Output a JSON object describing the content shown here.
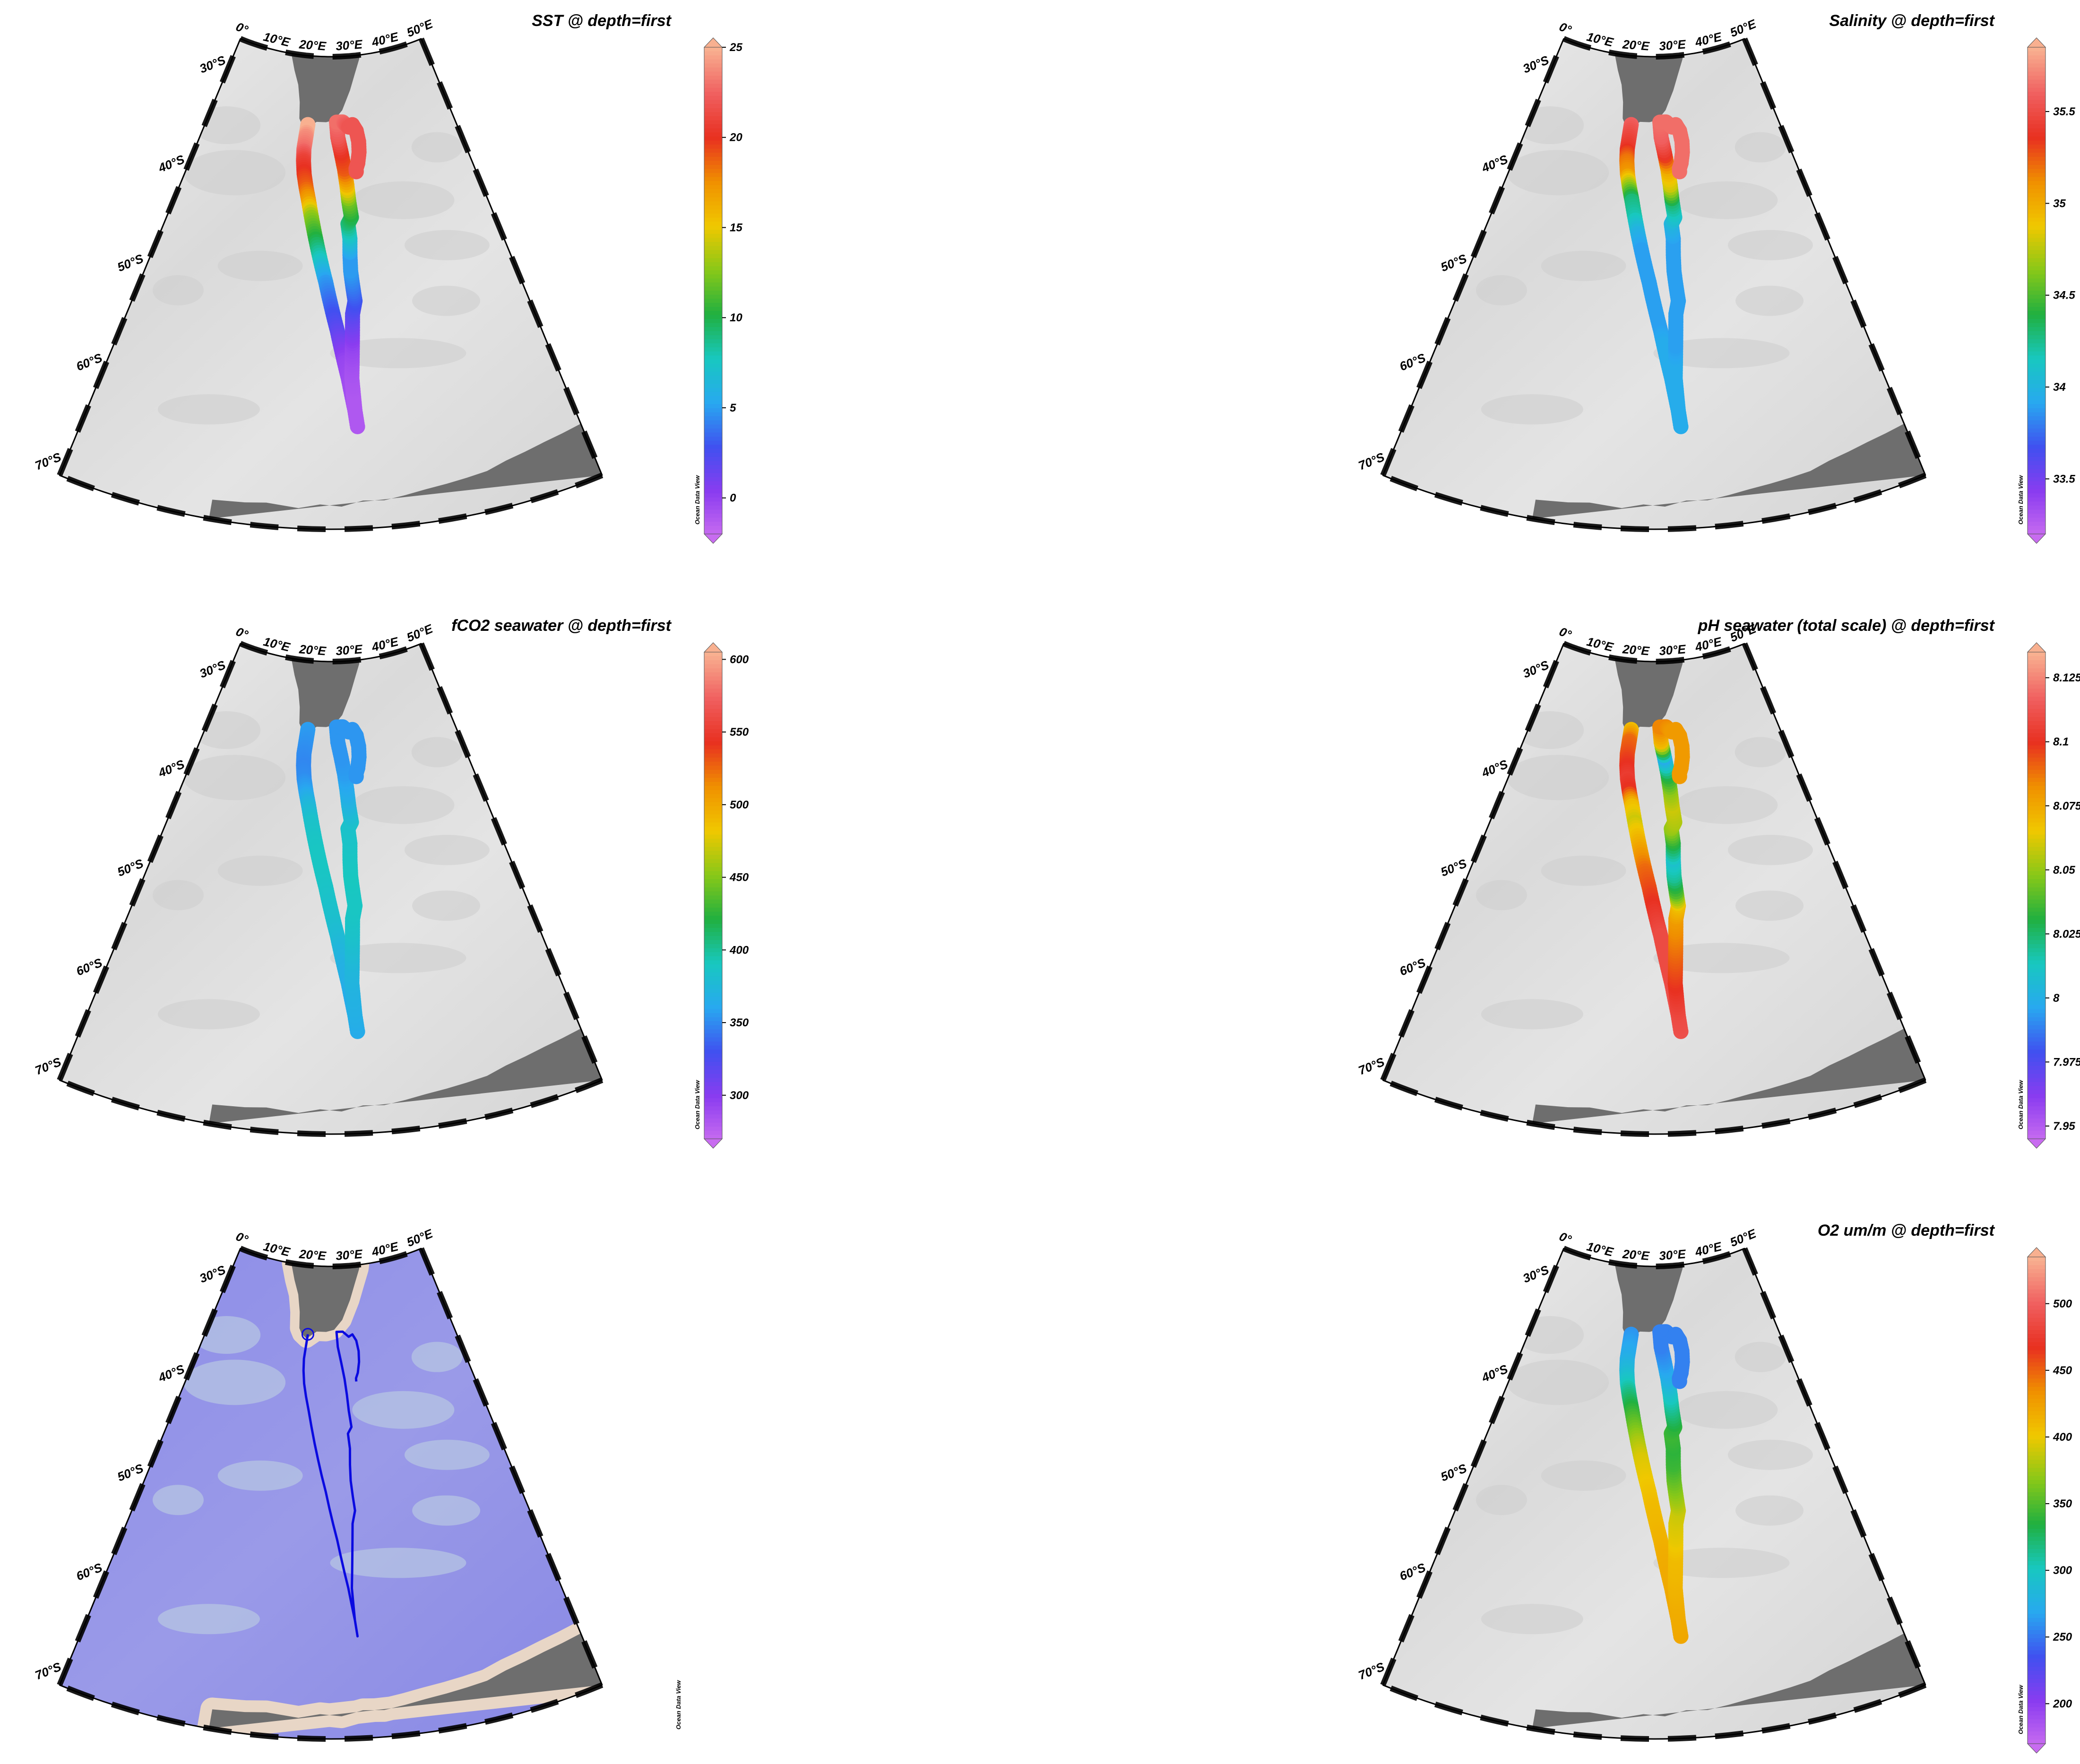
{
  "map": {
    "lon_range": [
      0,
      50
    ],
    "lat_range": [
      -72,
      -28
    ],
    "lon_ticks": [
      0,
      10,
      20,
      30,
      40,
      50
    ],
    "lat_ticks": [
      -30,
      -40,
      -50,
      -60,
      -70
    ],
    "lon_tick_labels": [
      "0°",
      "10°E",
      "20°E",
      "30°E",
      "40°E",
      "50°E"
    ],
    "lat_tick_labels": [
      "30°S",
      "40°S",
      "50°S",
      "60°S",
      "70°S"
    ],
    "credit": "Ocean Data View",
    "colors": {
      "land": "#6e6e6e",
      "ocean_light": "#ebebeb",
      "ocean_dark": "#cfcfcf",
      "track_line": "#0a0ae0",
      "bathy_ocean": "#8e8ee6",
      "bathy_shelf": "#b8c8e2",
      "bathy_coast": "#e8d6c6"
    },
    "palette": [
      "#c86cf0",
      "#8a3cf0",
      "#4050f0",
      "#28a8f0",
      "#18c8c0",
      "#20b040",
      "#88c818",
      "#f0c800",
      "#f09000",
      "#e83020",
      "#f06060",
      "#f8b090"
    ]
  },
  "panels": [
    {
      "id": "sst",
      "title": "SST @ depth=first",
      "variable": "SST",
      "colorbar": {
        "min": -2,
        "max": 25,
        "ticks": [
          0,
          5,
          10,
          15,
          20,
          25
        ],
        "tick_labels": [
          "0",
          "5",
          "10",
          "15",
          "20",
          "25"
        ]
      },
      "leg_a": [
        26,
        24,
        23,
        21,
        20,
        19,
        17,
        13,
        11,
        9,
        7,
        5,
        4,
        3,
        2,
        1,
        0,
        -0.3,
        -0.5,
        -0.8,
        -1
      ],
      "leg_b": [
        -1,
        -1,
        -1,
        -0.8,
        -0.5,
        0,
        1,
        2,
        3,
        4,
        5,
        5,
        7,
        9,
        10,
        12,
        16,
        19,
        20,
        22,
        23,
        23,
        22
      ]
    },
    {
      "id": "salinity",
      "title": "Salinity @ depth=first",
      "variable": "Salinity",
      "colorbar": {
        "min": 33.2,
        "max": 35.85,
        "ticks": [
          33.5,
          34,
          34.5,
          35,
          35.5
        ],
        "tick_labels": [
          "33.5",
          "34",
          "34.5",
          "35",
          "35.5"
        ]
      },
      "leg_a": [
        35.6,
        35.5,
        35.4,
        35.2,
        35.1,
        34.7,
        34.3,
        34.2,
        34.0,
        33.9,
        33.9,
        33.9,
        33.9,
        33.9,
        33.9,
        33.95,
        33.95,
        33.95,
        33.95,
        33.95,
        33.95
      ],
      "leg_b": [
        33.95,
        33.95,
        33.95,
        33.95,
        33.95,
        33.9,
        33.9,
        33.9,
        33.9,
        33.9,
        33.9,
        33.9,
        33.9,
        34.0,
        34.1,
        34.3,
        34.8,
        35.0,
        35.4,
        35.6,
        35.65,
        35.65,
        35.65
      ]
    },
    {
      "id": "fco2",
      "title": "fCO2 seawater @ depth=first",
      "variable": "fCO2 seawater",
      "colorbar": {
        "min": 270,
        "max": 605,
        "ticks": [
          300,
          350,
          400,
          450,
          500,
          550,
          600
        ],
        "tick_labels": [
          "300",
          "350",
          "400",
          "450",
          "500",
          "550",
          "600"
        ]
      },
      "leg_a": [
        358,
        355,
        352,
        350,
        352,
        360,
        375,
        385,
        388,
        390,
        390,
        388,
        386,
        384,
        380,
        375,
        370,
        368,
        365,
        365,
        365
      ],
      "leg_b": [
        365,
        368,
        370,
        372,
        375,
        380,
        385,
        388,
        390,
        390,
        392,
        390,
        388,
        386,
        385,
        375,
        365,
        358,
        355,
        355,
        355,
        355,
        355
      ]
    },
    {
      "id": "ph",
      "title": "pH seawater (total scale) @ depth=first",
      "variable": "pH seawater (total scale)",
      "colorbar": {
        "min": 7.945,
        "max": 8.135,
        "ticks": [
          7.95,
          7.975,
          8.0,
          8.025,
          8.05,
          8.075,
          8.1,
          8.125
        ],
        "tick_labels": [
          "7.95",
          "7.975",
          "8",
          "8.025",
          "8.05",
          "8.075",
          "8.1",
          "8.125"
        ]
      },
      "leg_a": [
        8.07,
        8.09,
        8.095,
        8.1,
        8.105,
        8.1,
        8.07,
        8.06,
        8.07,
        8.08,
        8.09,
        8.095,
        8.1,
        8.105,
        8.11,
        8.11,
        8.11,
        8.11,
        8.112,
        8.112,
        8.112
      ],
      "leg_b": [
        8.112,
        8.11,
        8.105,
        8.1,
        8.095,
        8.09,
        8.085,
        8.08,
        8.07,
        8.04,
        8.02,
        8.01,
        8.03,
        8.05,
        8.055,
        8.06,
        8.05,
        8.03,
        8.0,
        8.07,
        8.085,
        8.085,
        8.08
      ]
    },
    {
      "id": "track",
      "title": "",
      "variable": "",
      "colorbar": null
    },
    {
      "id": "o2",
      "title": "O2 um/m @ depth=first",
      "variable": "O2 um/m",
      "colorbar": {
        "min": 170,
        "max": 535,
        "ticks": [
          200,
          250,
          300,
          350,
          400,
          450,
          500
        ],
        "tick_labels": [
          "200",
          "250",
          "300",
          "350",
          "400",
          "450",
          "500"
        ]
      },
      "leg_a": [
        262,
        268,
        275,
        285,
        300,
        320,
        340,
        360,
        380,
        395,
        400,
        405,
        410,
        412,
        415,
        418,
        420,
        420,
        422,
        422,
        422
      ],
      "leg_b": [
        422,
        420,
        418,
        415,
        412,
        410,
        400,
        395,
        390,
        375,
        360,
        345,
        340,
        345,
        340,
        320,
        300,
        280,
        265,
        255,
        255,
        255,
        255
      ]
    }
  ],
  "cruise_track": {
    "leg_a": [
      [
        20.2,
        -34.4
      ],
      [
        20.0,
        -35.5
      ],
      [
        19.8,
        -36.7
      ],
      [
        19.9,
        -37.8
      ],
      [
        20.2,
        -39.0
      ],
      [
        20.7,
        -40.2
      ],
      [
        21.3,
        -41.5
      ],
      [
        21.9,
        -43.0
      ],
      [
        22.5,
        -44.5
      ],
      [
        23.1,
        -46.0
      ],
      [
        23.7,
        -47.5
      ],
      [
        24.3,
        -49.0
      ],
      [
        24.8,
        -50.5
      ],
      [
        25.3,
        -52.0
      ],
      [
        25.8,
        -53.5
      ],
      [
        26.2,
        -55.0
      ],
      [
        26.6,
        -56.5
      ],
      [
        27.0,
        -58.0
      ],
      [
        27.3,
        -59.5
      ],
      [
        27.6,
        -61.0
      ],
      [
        27.8,
        -62.5
      ]
    ],
    "leg_b": [
      [
        27.8,
        -62.5
      ],
      [
        27.6,
        -61.0
      ],
      [
        27.5,
        -59.5
      ],
      [
        27.4,
        -58.0
      ],
      [
        27.5,
        -56.5
      ],
      [
        27.6,
        -55.0
      ],
      [
        27.7,
        -53.5
      ],
      [
        27.8,
        -52.0
      ],
      [
        28.2,
        -50.8
      ],
      [
        28.0,
        -49.5
      ],
      [
        27.8,
        -48.0
      ],
      [
        27.8,
        -46.5
      ],
      [
        27.9,
        -45.0
      ],
      [
        27.7,
        -43.6
      ],
      [
        28.3,
        -43.0
      ],
      [
        28.0,
        -41.5
      ],
      [
        27.8,
        -40.0
      ],
      [
        27.5,
        -38.5
      ],
      [
        27.0,
        -37.0
      ],
      [
        26.4,
        -35.5
      ],
      [
        26.2,
        -34.1
      ],
      [
        27.5,
        -34.1
      ],
      [
        28.7,
        -34.6
      ]
    ],
    "small_loop": [
      [
        28.7,
        -34.6
      ],
      [
        29.5,
        -34.4
      ],
      [
        30.2,
        -35.0
      ],
      [
        30.5,
        -36.0
      ],
      [
        30.4,
        -37.0
      ],
      [
        30.0,
        -38.0
      ],
      [
        29.6,
        -38.5
      ],
      [
        29.6,
        -38.8
      ]
    ]
  }
}
